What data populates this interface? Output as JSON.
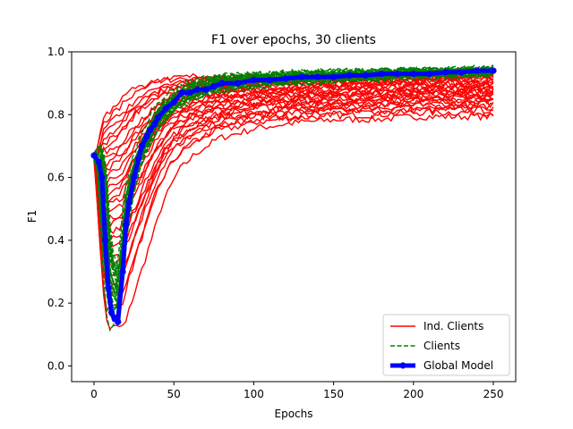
{
  "chart_data": {
    "type": "line",
    "title": "F1 over epochs, 30 clients",
    "xlabel": "Epochs",
    "ylabel": "F1",
    "xlim": [
      -14,
      264
    ],
    "ylim": [
      -0.05,
      1.0
    ],
    "xticks": [
      0,
      50,
      100,
      150,
      200,
      250
    ],
    "yticks": [
      0.0,
      0.2,
      0.4,
      0.6,
      0.8,
      1.0
    ],
    "xtick_labels": [
      "0",
      "50",
      "100",
      "150",
      "200",
      "250"
    ],
    "ytick_labels": [
      "0.0",
      "0.2",
      "0.4",
      "0.6",
      "0.8",
      "1.0"
    ],
    "grid": false,
    "legend": {
      "position": "bottom-right",
      "entries": [
        {
          "label": "Ind. Clients",
          "color": "#ff0000",
          "style": "solid"
        },
        {
          "label": "Clients",
          "color": "#008000",
          "style": "dashed"
        },
        {
          "label": "Global Model",
          "color": "#0000ff",
          "style": "thick-marker"
        }
      ]
    },
    "series": [
      {
        "name": "Ind. Clients",
        "color": "#ff0000",
        "count": 30,
        "x": [
          0,
          3,
          5,
          8,
          10,
          12,
          15,
          18,
          20,
          25,
          30,
          35,
          40,
          50,
          60,
          75,
          100,
          125,
          150,
          175,
          200,
          225,
          250
        ],
        "upper": [
          0.66,
          0.7,
          0.78,
          0.8,
          0.81,
          0.82,
          0.83,
          0.85,
          0.86,
          0.88,
          0.89,
          0.9,
          0.91,
          0.92,
          0.92,
          0.92,
          0.92,
          0.92,
          0.92,
          0.93,
          0.93,
          0.93,
          0.93
        ],
        "lower": [
          0.66,
          0.4,
          0.15,
          0.0,
          0.0,
          0.0,
          0.0,
          0.0,
          0.05,
          0.15,
          0.25,
          0.35,
          0.45,
          0.57,
          0.63,
          0.69,
          0.73,
          0.75,
          0.76,
          0.76,
          0.77,
          0.77,
          0.77
        ]
      },
      {
        "name": "Clients",
        "color": "#008000",
        "count": 30,
        "x": [
          0,
          3,
          5,
          8,
          10,
          12,
          15,
          18,
          20,
          25,
          30,
          35,
          40,
          50,
          60,
          75,
          100,
          125,
          150,
          175,
          200,
          225,
          250
        ],
        "upper": [
          0.67,
          0.7,
          0.72,
          0.6,
          0.4,
          0.35,
          0.3,
          0.42,
          0.55,
          0.65,
          0.72,
          0.77,
          0.82,
          0.87,
          0.9,
          0.92,
          0.93,
          0.935,
          0.94,
          0.94,
          0.945,
          0.945,
          0.95
        ],
        "lower": [
          0.65,
          0.58,
          0.3,
          0.1,
          0.07,
          0.08,
          0.12,
          0.28,
          0.4,
          0.55,
          0.65,
          0.7,
          0.74,
          0.8,
          0.83,
          0.86,
          0.88,
          0.89,
          0.9,
          0.905,
          0.91,
          0.915,
          0.92
        ]
      },
      {
        "name": "Global Model",
        "color": "#0000ff",
        "x": [
          0,
          3,
          5,
          7,
          9,
          11,
          13,
          15,
          18,
          20,
          22,
          25,
          28,
          30,
          33,
          35,
          38,
          40,
          45,
          50,
          55,
          60,
          65,
          70,
          75,
          80,
          90,
          100,
          110,
          120,
          130,
          140,
          150,
          160,
          170,
          180,
          190,
          200,
          210,
          220,
          230,
          240,
          250
        ],
        "y": [
          0.67,
          0.65,
          0.6,
          0.4,
          0.25,
          0.17,
          0.15,
          0.14,
          0.3,
          0.45,
          0.52,
          0.6,
          0.66,
          0.7,
          0.73,
          0.75,
          0.77,
          0.79,
          0.82,
          0.84,
          0.87,
          0.87,
          0.88,
          0.88,
          0.89,
          0.9,
          0.9,
          0.91,
          0.91,
          0.915,
          0.92,
          0.92,
          0.92,
          0.925,
          0.925,
          0.93,
          0.93,
          0.93,
          0.93,
          0.935,
          0.935,
          0.94,
          0.94
        ]
      }
    ]
  }
}
